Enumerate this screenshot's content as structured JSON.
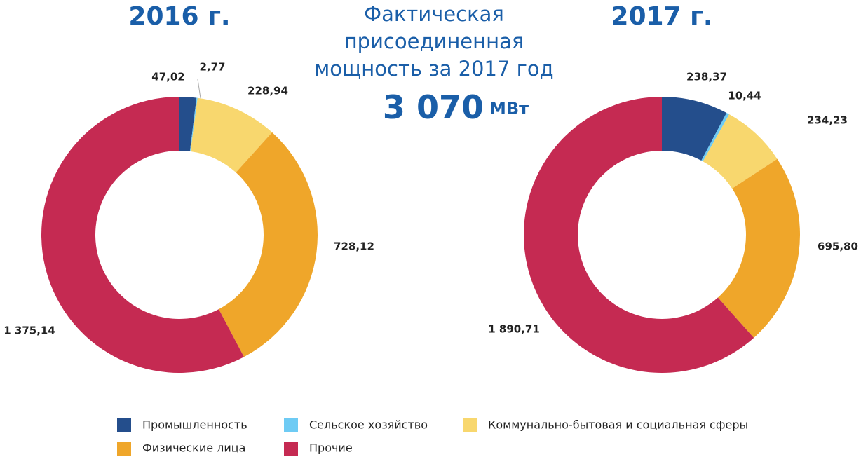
{
  "headline": {
    "lines": [
      "Фактическая",
      "присоединенная",
      "мощность за 2017 год"
    ],
    "total": "3 070",
    "unit": "МВт"
  },
  "chart_data": [
    {
      "type": "pie",
      "title": "2016 г.",
      "categories": [
        "Промышленность",
        "Сельское хозяйство",
        "Коммунально-бытовая и социальная сферы",
        "Физические лица",
        "Прочие"
      ],
      "colors": [
        "#244e8c",
        "#6ecbf4",
        "#f8d76e",
        "#efa62a",
        "#c52a52"
      ],
      "values": [
        47.02,
        2.77,
        228.94,
        728.12,
        1375.14
      ],
      "value_labels": [
        "47,02",
        "2,77",
        "228,94",
        "728,12",
        "1 375,14"
      ]
    },
    {
      "type": "pie",
      "title": "2017 г.",
      "categories": [
        "Промышленность",
        "Сельское хозяйство",
        "Коммунально-бытовая и социальная сферы",
        "Физические лица",
        "Прочие"
      ],
      "colors": [
        "#244e8c",
        "#6ecbf4",
        "#f8d76e",
        "#efa62a",
        "#c52a52"
      ],
      "values": [
        238.37,
        10.44,
        234.23,
        695.8,
        1890.71
      ],
      "value_labels": [
        "238,37",
        "10,44",
        "234,23",
        "695,80",
        "1 890,71"
      ]
    }
  ]
}
